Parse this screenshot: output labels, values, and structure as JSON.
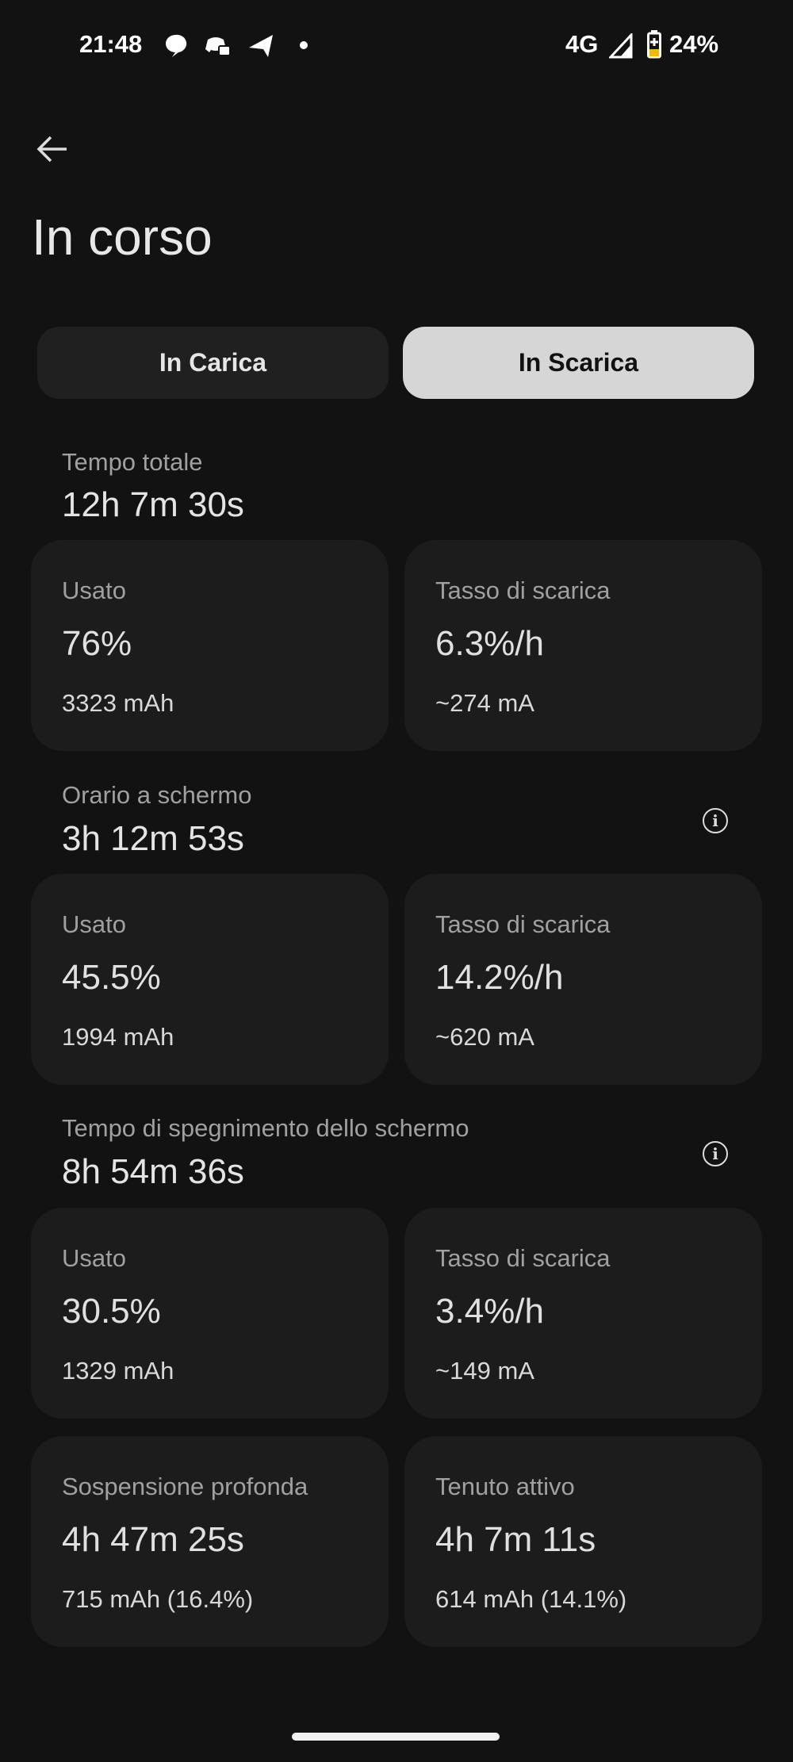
{
  "status_bar": {
    "time": "21:48",
    "network": "4G",
    "battery": "24%",
    "notification_icons": [
      "chat-bubble-icon",
      "discord-icon",
      "telegram-icon",
      "dot-icon"
    ],
    "battery_color": "#f5b800"
  },
  "header": {
    "title": "In corso"
  },
  "tabs": [
    {
      "label": "In Carica",
      "active": false
    },
    {
      "label": "In Scarica",
      "active": true
    }
  ],
  "sections": [
    {
      "label": "Tempo totale",
      "value": "12h 7m 30s",
      "info": false,
      "cards": [
        {
          "label": "Usato",
          "value": "76%",
          "sub": "3323 mAh"
        },
        {
          "label": "Tasso di scarica",
          "value": "6.3%/h",
          "sub": "~274 mA"
        }
      ]
    },
    {
      "label": "Orario a schermo",
      "value": "3h 12m 53s",
      "info": true,
      "cards": [
        {
          "label": "Usato",
          "value": "45.5%",
          "sub": "1994 mAh"
        },
        {
          "label": "Tasso di scarica",
          "value": "14.2%/h",
          "sub": "~620 mA"
        }
      ]
    },
    {
      "label": "Tempo di spegnimento dello schermo",
      "value": "8h 54m 36s",
      "info": true,
      "cards": [
        {
          "label": "Usato",
          "value": "30.5%",
          "sub": "1329 mAh"
        },
        {
          "label": "Tasso di scarica",
          "value": "3.4%/h",
          "sub": "~149 mA"
        }
      ]
    }
  ],
  "bottom_cards": [
    {
      "label": "Sospensione profonda",
      "value": "4h 47m 25s",
      "sub": "715 mAh (16.4%)"
    },
    {
      "label": "Tenuto attivo",
      "value": "4h 7m 11s",
      "sub": "614 mAh (14.1%)"
    }
  ],
  "colors": {
    "background": "#121212",
    "card": "#1c1c1c",
    "active_tab": "#d6d6d6"
  }
}
